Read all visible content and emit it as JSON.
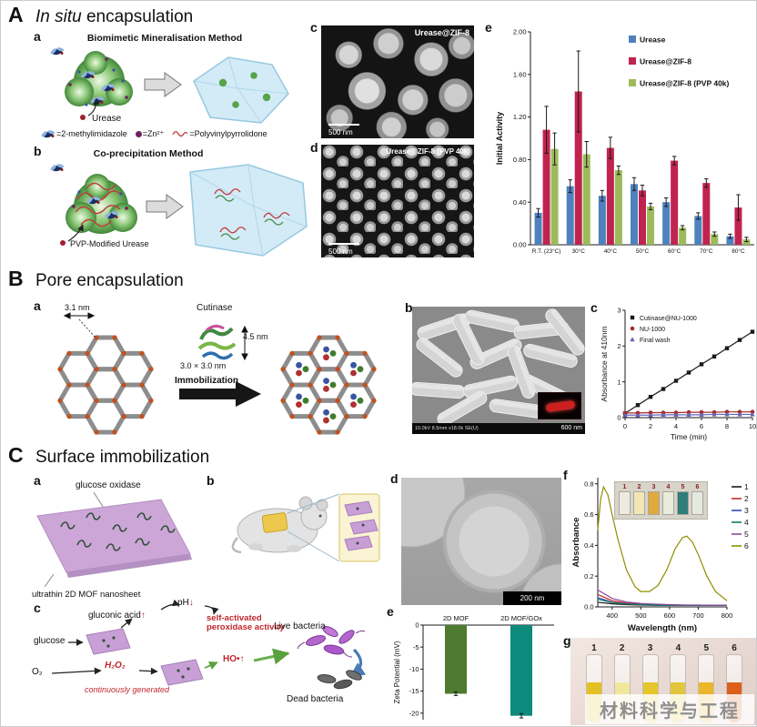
{
  "watermark": "材料科学与工程",
  "panelA": {
    "label": "A",
    "title_italic": "In situ",
    "title_rest": "encapsulation",
    "a": {
      "label": "a",
      "title": "Biomimetic Mineralisation Method",
      "enzyme": "Urease"
    },
    "legend": {
      "mim": "=2-methylimidazole",
      "zn": "=Zn²⁺",
      "pvp": "=Polyvinylpyrrolidone"
    },
    "b": {
      "label": "b",
      "title": "Co-precipitation Method",
      "enzyme": "PVP-Modified Urease"
    },
    "c": {
      "label": "c",
      "img_label": "Urease@ZIF-8",
      "scale": "500 nm"
    },
    "d": {
      "label": "d",
      "img_label": "Urease@ZIF-8 (PVP 40k)",
      "scale": "500 nm"
    },
    "e": {
      "label": "e"
    }
  },
  "panelB": {
    "label": "B",
    "title": "Pore encapsulation",
    "a": {
      "label": "a",
      "pore": "3.1 nm",
      "enzyme": "Cutinase",
      "height": "4.5 nm",
      "channel": "3.0 × 3.0 nm",
      "arrow": "Immobilization"
    },
    "b": {
      "label": "b",
      "scale": "600 nm",
      "sem_info": "10.0kV 8.5mm x18.0k SE(U)"
    },
    "c": {
      "label": "c"
    }
  },
  "panelC": {
    "label": "C",
    "title": "Surface immobilization",
    "a": {
      "label": "a",
      "top_label": "glucose oxidase",
      "bottom_label": "ultrathin 2D MOF nanosheet"
    },
    "b": {
      "label": "b"
    },
    "c": {
      "label": "c",
      "glucose": "glucose",
      "gluconic": "gluconic acid",
      "up": "↑",
      "ph": "pH",
      "down": "↓",
      "self_activated": "self-activated peroxidase activity",
      "o2": "O₂",
      "h2o2": "H₂O₂",
      "cont": "continuously generated",
      "ho": "HO•",
      "live": "Live bacteria",
      "dead": "Dead bacteria"
    },
    "d": {
      "label": "d",
      "scale": "200 nm"
    },
    "e": {
      "label": "e"
    },
    "f": {
      "label": "f",
      "inset": {
        "labels": [
          "1",
          "2",
          "3",
          "4",
          "5",
          "6"
        ],
        "colors": [
          "#eeeadf",
          "#f2e7b4",
          "#e2a93c",
          "#e9ecda",
          "#2e7d78",
          "#e6e8e2"
        ]
      }
    },
    "g": {
      "label": "g",
      "tubes": [
        "1",
        "2",
        "3",
        "4",
        "5",
        "6"
      ],
      "colors": [
        "#e4c122",
        "#f1e79c",
        "#e7c62c",
        "#e2c63a",
        "#eab62a",
        "#dd5f1a"
      ]
    }
  },
  "chart_data": [
    {
      "id": "activity",
      "type": "bar",
      "categories": [
        "R.T. (23°C)",
        "30°C",
        "40°C",
        "50°C",
        "60°C",
        "70°C",
        "80°C"
      ],
      "series": [
        {
          "name": "Urease",
          "color": "#4f81bd",
          "values": [
            0.3,
            0.55,
            0.46,
            0.57,
            0.4,
            0.27,
            0.08
          ],
          "errors": [
            0.04,
            0.06,
            0.05,
            0.06,
            0.04,
            0.03,
            0.02
          ]
        },
        {
          "name": "Urease@ZIF-8",
          "color": "#c0244e",
          "values": [
            1.08,
            1.44,
            0.91,
            0.51,
            0.79,
            0.58,
            0.35
          ],
          "errors": [
            0.22,
            0.38,
            0.1,
            0.05,
            0.04,
            0.04,
            0.12
          ]
        },
        {
          "name": "Urease@ZIF-8 (PVP 40k)",
          "color": "#9bbb59",
          "values": [
            0.9,
            0.85,
            0.7,
            0.36,
            0.16,
            0.1,
            0.05
          ],
          "errors": [
            0.15,
            0.12,
            0.04,
            0.03,
            0.02,
            0.02,
            0.02
          ]
        }
      ],
      "ylabel": "Initial Activity",
      "ylim": [
        0,
        2.0
      ],
      "yticks": [
        0.0,
        0.4,
        0.8,
        1.2,
        1.6,
        2.0
      ],
      "legend_position": "top-right",
      "grid": false
    },
    {
      "id": "kinetics",
      "type": "line",
      "xlabel": "Time (min)",
      "ylabel": "Absorbance at 410nm",
      "xlim": [
        0,
        10
      ],
      "ylim": [
        0,
        3
      ],
      "xticks": [
        0,
        2,
        4,
        6,
        8,
        10
      ],
      "yticks": [
        0,
        1,
        2,
        3
      ],
      "legend_position": "top-left",
      "series": [
        {
          "name": "Cutinase@NU-1000",
          "color": "#1a1a1a",
          "marker": "square",
          "x": [
            0,
            1,
            2,
            3,
            4,
            5,
            6,
            7,
            8,
            9,
            10
          ],
          "y": [
            0.12,
            0.35,
            0.58,
            0.8,
            1.03,
            1.26,
            1.49,
            1.71,
            1.94,
            2.17,
            2.4
          ]
        },
        {
          "name": "NU-1000",
          "color": "#a52a2a",
          "marker": "circle",
          "x": [
            0,
            1,
            2,
            3,
            4,
            5,
            6,
            7,
            8,
            9,
            10
          ],
          "y": [
            0.13,
            0.13,
            0.14,
            0.14,
            0.14,
            0.15,
            0.15,
            0.15,
            0.16,
            0.16,
            0.16
          ]
        },
        {
          "name": "Final wash",
          "color": "#6666bb",
          "marker": "triangle",
          "x": [
            0,
            1,
            2,
            3,
            4,
            5,
            6,
            7,
            8,
            9,
            10
          ],
          "y": [
            0.07,
            0.07,
            0.07,
            0.08,
            0.08,
            0.08,
            0.08,
            0.09,
            0.09,
            0.09,
            0.09
          ]
        }
      ]
    },
    {
      "id": "zeta",
      "type": "bar",
      "categories": [
        "2D MOF",
        "2D MOF/GOx"
      ],
      "series": [
        {
          "name": "Zeta Potential",
          "colors": [
            "#4e7b2f",
            "#0e8a7c"
          ],
          "values": [
            -15.6,
            -20.6
          ],
          "errors": [
            0.4,
            0.5
          ]
        }
      ],
      "ylabel": "Zeta Potential (mV)",
      "ylim": [
        -21.5,
        0
      ],
      "yticks": [
        0,
        -5,
        -10,
        -15,
        -20
      ],
      "category_labels_position": "top"
    },
    {
      "id": "spectra",
      "type": "line",
      "xlabel": "Wavelength (nm)",
      "ylabel": "Absorbance",
      "xlim": [
        350,
        800
      ],
      "ylim": [
        0,
        0.84
      ],
      "xticks": [
        400,
        500,
        600,
        700,
        800
      ],
      "yticks": [
        0.0,
        0.2,
        0.4,
        0.6,
        0.8
      ],
      "legend_position": "right",
      "series": [
        {
          "name": "1",
          "color": "#1a1a1a",
          "x": [
            350,
            400,
            450,
            500,
            550,
            600,
            650,
            700,
            750,
            800
          ],
          "y": [
            0.03,
            0.02,
            0.015,
            0.012,
            0.01,
            0.01,
            0.01,
            0.01,
            0.01,
            0.01
          ]
        },
        {
          "name": "2",
          "color": "#cc2a2a",
          "x": [
            350,
            400,
            450,
            500,
            550,
            600,
            650,
            700,
            750,
            800
          ],
          "y": [
            0.08,
            0.04,
            0.025,
            0.018,
            0.015,
            0.012,
            0.012,
            0.01,
            0.01,
            0.01
          ]
        },
        {
          "name": "3",
          "color": "#2a4bbf",
          "x": [
            350,
            400,
            450,
            500,
            550,
            600,
            650,
            700,
            750,
            800
          ],
          "y": [
            0.06,
            0.03,
            0.02,
            0.015,
            0.012,
            0.012,
            0.01,
            0.01,
            0.01,
            0.01
          ]
        },
        {
          "name": "4",
          "color": "#157a5a",
          "x": [
            350,
            400,
            450,
            500,
            550,
            600,
            650,
            700,
            750,
            800
          ],
          "y": [
            0.05,
            0.028,
            0.018,
            0.014,
            0.012,
            0.01,
            0.01,
            0.01,
            0.01,
            0.01
          ]
        },
        {
          "name": "5",
          "color": "#8a4a9d",
          "x": [
            350,
            400,
            450,
            500,
            550,
            600,
            650,
            700,
            750,
            800
          ],
          "y": [
            0.11,
            0.055,
            0.032,
            0.022,
            0.018,
            0.015,
            0.012,
            0.012,
            0.01,
            0.01
          ]
        },
        {
          "name": "6",
          "color": "#8f8f00",
          "x": [
            350,
            360,
            370,
            385,
            400,
            420,
            450,
            480,
            500,
            530,
            560,
            590,
            620,
            645,
            660,
            680,
            700,
            730,
            760,
            800
          ],
          "y": [
            0.5,
            0.7,
            0.78,
            0.73,
            0.6,
            0.44,
            0.24,
            0.13,
            0.1,
            0.1,
            0.14,
            0.24,
            0.38,
            0.45,
            0.46,
            0.42,
            0.34,
            0.2,
            0.1,
            0.04
          ]
        }
      ]
    }
  ]
}
